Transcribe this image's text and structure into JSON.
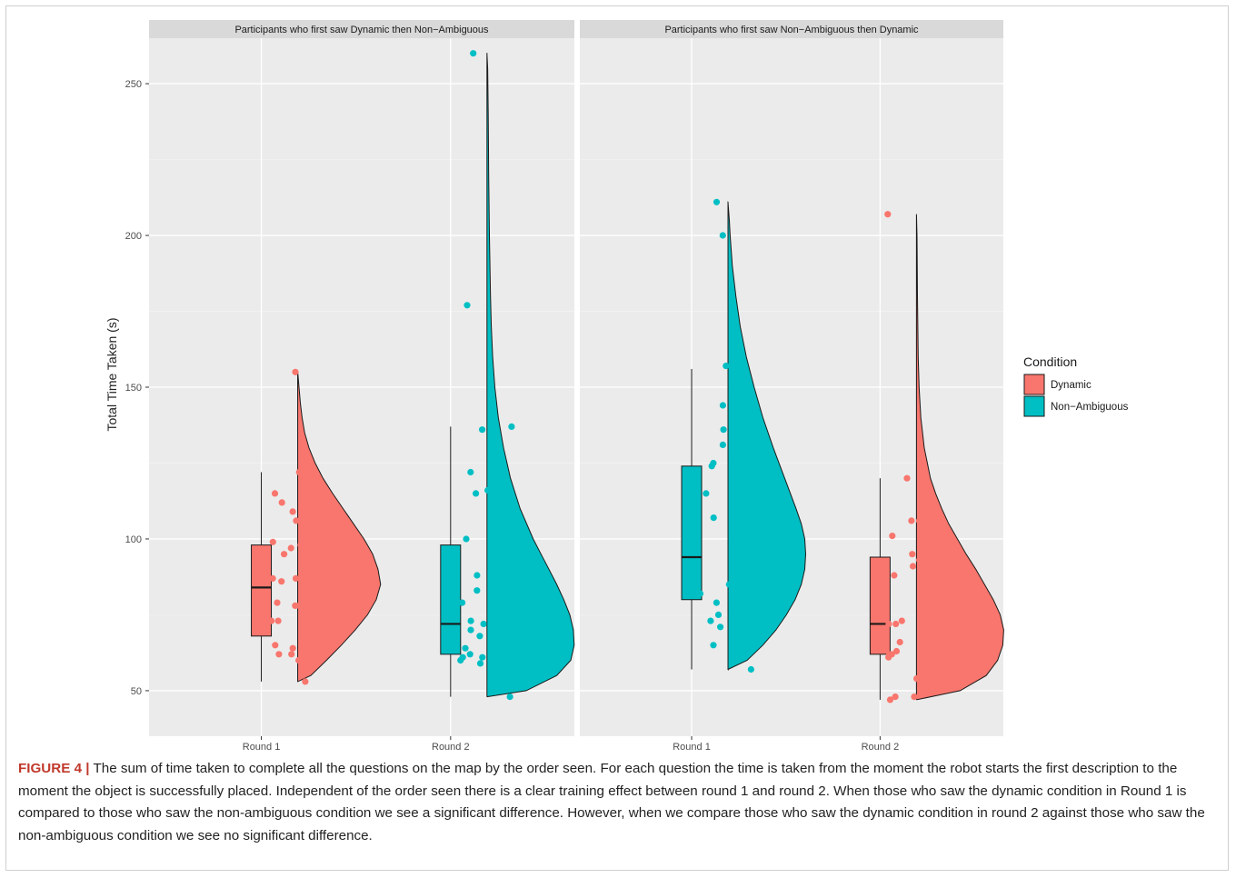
{
  "caption": {
    "label": "FIGURE 4 |",
    "text": "The sum of time taken to complete all the questions on the map by the order seen. For each question the time is taken from the moment the robot starts the first description to the moment the object is successfully placed. Independent of the order seen there is a clear training effect between round 1 and round 2. When those who saw the dynamic condition in Round 1 is compared to those who saw the non-ambiguous condition we see a significant difference. However, when we compare those who saw the dynamic condition in round 2 against those who saw the non-ambiguous condition we see no significant difference."
  },
  "chart_data": {
    "type": "raincloud",
    "ylabel": "Total Time Taken (s)",
    "xlabel": "",
    "ylim": [
      35,
      265
    ],
    "yticks": [
      50,
      100,
      150,
      200,
      250
    ],
    "categories": [
      "Round 1",
      "Round 2"
    ],
    "grid": true,
    "legend": {
      "title": "Condition",
      "position": "right",
      "entries": [
        {
          "name": "Dynamic",
          "color": "#F8766D"
        },
        {
          "name": "Non−Ambiguous",
          "color": "#00BFC4"
        }
      ]
    },
    "panels": [
      {
        "title": "Participants who first saw Dynamic then Non−Ambiguous",
        "groups": [
          {
            "category": "Round 1",
            "condition": "Dynamic",
            "color": "#F8766D",
            "box": {
              "min": 53,
              "q1": 68,
              "median": 84,
              "q3": 98,
              "max": 122
            },
            "points": [
              155,
              122,
              115,
              112,
              109,
              106,
              99,
              99,
              98,
              97,
              95,
              95,
              92,
              87,
              87,
              86,
              82,
              79,
              78,
              78,
              73,
              73,
              70,
              68,
              65,
              64,
              63,
              62,
              62,
              60,
              53
            ],
            "density": [
              [
                53,
                0.0
              ],
              [
                55,
                0.15
              ],
              [
                60,
                0.33
              ],
              [
                65,
                0.5
              ],
              [
                70,
                0.66
              ],
              [
                75,
                0.8
              ],
              [
                80,
                0.9
              ],
              [
                85,
                0.95
              ],
              [
                90,
                0.92
              ],
              [
                95,
                0.86
              ],
              [
                100,
                0.76
              ],
              [
                105,
                0.64
              ],
              [
                110,
                0.52
              ],
              [
                115,
                0.4
              ],
              [
                120,
                0.29
              ],
              [
                125,
                0.2
              ],
              [
                130,
                0.13
              ],
              [
                135,
                0.08
              ],
              [
                140,
                0.05
              ],
              [
                145,
                0.03
              ],
              [
                150,
                0.015
              ],
              [
                155,
                0.0
              ]
            ]
          },
          {
            "category": "Round 2",
            "condition": "Non−Ambiguous",
            "color": "#00BFC4",
            "box": {
              "min": 48,
              "q1": 62,
              "median": 72,
              "q3": 98,
              "max": 137
            },
            "points": [
              260,
              177,
              137,
              136,
              122,
              116,
              115,
              100,
              91,
              88,
              83,
              79,
              74,
              73,
              72,
              72,
              70,
              69,
              68,
              67,
              66,
              64,
              62,
              61,
              61,
              60,
              59,
              58,
              57,
              48
            ],
            "density": [
              [
                48,
                0.0
              ],
              [
                50,
                0.45
              ],
              [
                55,
                0.8
              ],
              [
                60,
                0.96
              ],
              [
                65,
                1.0
              ],
              [
                70,
                0.99
              ],
              [
                75,
                0.95
              ],
              [
                80,
                0.88
              ],
              [
                85,
                0.8
              ],
              [
                90,
                0.71
              ],
              [
                95,
                0.62
              ],
              [
                100,
                0.53
              ],
              [
                110,
                0.38
              ],
              [
                120,
                0.27
              ],
              [
                130,
                0.19
              ],
              [
                140,
                0.13
              ],
              [
                150,
                0.09
              ],
              [
                160,
                0.065
              ],
              [
                170,
                0.05
              ],
              [
                180,
                0.04
              ],
              [
                200,
                0.028
              ],
              [
                220,
                0.02
              ],
              [
                240,
                0.014
              ],
              [
                255,
                0.008
              ],
              [
                260,
                0.0
              ]
            ]
          }
        ]
      },
      {
        "title": "Participants who first saw Non−Ambiguous then Dynamic",
        "groups": [
          {
            "category": "Round 1",
            "condition": "Non−Ambiguous",
            "color": "#00BFC4",
            "box": {
              "min": 57,
              "q1": 80,
              "median": 94,
              "q3": 124,
              "max": 156
            },
            "points": [
              211,
              200,
              157,
              144,
              139,
              136,
              131,
              125,
              124,
              124,
              115,
              107,
              106,
              102,
              102,
              94,
              89,
              89,
              85,
              85,
              82,
              79,
              75,
              73,
              71,
              69,
              66,
              65,
              57
            ],
            "density": [
              [
                57,
                0.0
              ],
              [
                60,
                0.22
              ],
              [
                65,
                0.4
              ],
              [
                70,
                0.55
              ],
              [
                75,
                0.67
              ],
              [
                80,
                0.77
              ],
              [
                85,
                0.84
              ],
              [
                90,
                0.88
              ],
              [
                95,
                0.89
              ],
              [
                100,
                0.88
              ],
              [
                105,
                0.84
              ],
              [
                110,
                0.78
              ],
              [
                120,
                0.65
              ],
              [
                130,
                0.52
              ],
              [
                140,
                0.4
              ],
              [
                150,
                0.3
              ],
              [
                160,
                0.21
              ],
              [
                170,
                0.14
              ],
              [
                180,
                0.09
              ],
              [
                190,
                0.05
              ],
              [
                200,
                0.025
              ],
              [
                205,
                0.015
              ],
              [
                211,
                0.0
              ]
            ]
          },
          {
            "category": "Round 2",
            "condition": "Dynamic",
            "color": "#F8766D",
            "box": {
              "min": 47,
              "q1": 62,
              "median": 72,
              "q3": 94,
              "max": 120
            },
            "points": [
              207,
              120,
              106,
              106,
              101,
              100,
              95,
              94,
              93,
              91,
              88,
              85,
              75,
              73,
              72,
              72,
              71,
              71,
              70,
              68,
              66,
              64,
              63,
              62,
              62,
              61,
              54,
              52,
              50,
              48,
              48,
              47
            ],
            "density": [
              [
                47,
                0.0
              ],
              [
                50,
                0.5
              ],
              [
                55,
                0.8
              ],
              [
                60,
                0.93
              ],
              [
                65,
                0.99
              ],
              [
                70,
                1.0
              ],
              [
                75,
                0.96
              ],
              [
                80,
                0.88
              ],
              [
                85,
                0.78
              ],
              [
                90,
                0.68
              ],
              [
                95,
                0.57
              ],
              [
                100,
                0.47
              ],
              [
                105,
                0.37
              ],
              [
                110,
                0.29
              ],
              [
                115,
                0.22
              ],
              [
                120,
                0.16
              ],
              [
                130,
                0.09
              ],
              [
                140,
                0.05
              ],
              [
                150,
                0.03
              ],
              [
                160,
                0.02
              ],
              [
                180,
                0.012
              ],
              [
                200,
                0.006
              ],
              [
                207,
                0.0
              ]
            ]
          }
        ]
      }
    ]
  }
}
